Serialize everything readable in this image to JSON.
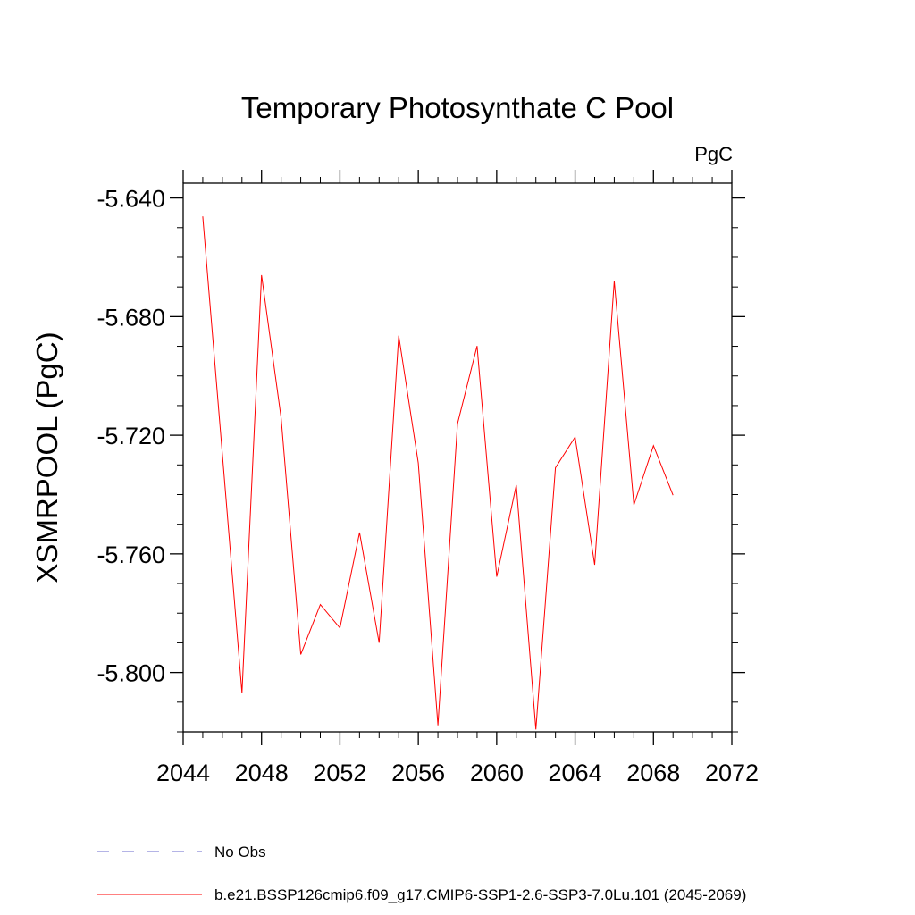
{
  "chart_data": {
    "type": "line",
    "title": "Temporary Photosynthate C Pool",
    "units": "PgC",
    "ylabel": "XSMRPOOL  (PgC)",
    "xlabel": "",
    "xlim": [
      2044,
      2072
    ],
    "ylim": [
      -5.82,
      -5.635
    ],
    "x_ticks": [
      2044,
      2048,
      2052,
      2056,
      2060,
      2064,
      2068,
      2072
    ],
    "x_tick_labels": [
      "2044",
      "2048",
      "2052",
      "2056",
      "2060",
      "2064",
      "2068",
      "2072"
    ],
    "y_ticks": [
      -5.64,
      -5.68,
      -5.72,
      -5.76,
      -5.8
    ],
    "y_tick_labels": [
      "-5.640",
      "-5.680",
      "-5.720",
      "-5.760",
      "-5.800"
    ],
    "grid": false,
    "legend_position": "bottom-left",
    "series": [
      {
        "name": "b.e21.BSSP126cmip6.f09_g17.CMIP6-SSP1-2.6-SSP3-7.0Lu.101 (2045-2069)",
        "color": "#ff0000",
        "style": "solid",
        "x": [
          2045,
          2046,
          2047,
          2048,
          2049,
          2050,
          2051,
          2052,
          2053,
          2054,
          2055,
          2056,
          2057,
          2058,
          2059,
          2060,
          2061,
          2062,
          2063,
          2064,
          2065,
          2066,
          2067,
          2068,
          2069
        ],
        "values": [
          -5.6462,
          -5.7265,
          -5.8069,
          -5.666,
          -5.7141,
          -5.7939,
          -5.7771,
          -5.785,
          -5.7528,
          -5.79,
          -5.6864,
          -5.7293,
          -5.8178,
          -5.7161,
          -5.6899,
          -5.7677,
          -5.7368,
          -5.8192,
          -5.731,
          -5.7206,
          -5.7637,
          -5.668,
          -5.7435,
          -5.7235,
          -5.7402
        ]
      }
    ],
    "legend": [
      {
        "label": "No Obs",
        "color": "#6a6acd",
        "style": "dashed"
      },
      {
        "label": "b.e21.BSSP126cmip6.f09_g17.CMIP6-SSP1-2.6-SSP3-7.0Lu.101 (2045-2069)",
        "color": "#ff0000",
        "style": "solid"
      }
    ]
  }
}
